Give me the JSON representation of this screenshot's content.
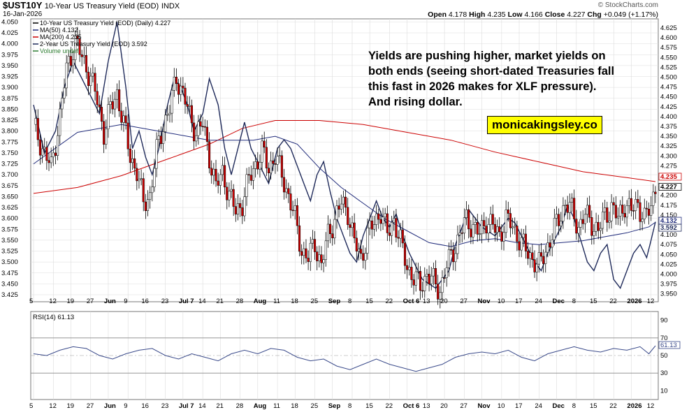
{
  "header": {
    "symbol": "$UST10Y",
    "name": "10-Year US Treasury Yield (EOD)",
    "exchange": "INDX",
    "date": "16-Jan-2026",
    "copyright": "© StockCharts.com",
    "open_label": "Open",
    "open": "4.178",
    "high_label": "High",
    "high": "4.235",
    "low_label": "Low",
    "low": "4.166",
    "close_label": "Close",
    "close": "4.227",
    "chg_label": "Chg",
    "chg": "+0.049 (+1.17%)"
  },
  "legend": [
    {
      "text": "10-Year US Treasury Yield (EOD) (Daily) 4.227",
      "color": "#000000"
    },
    {
      "text": "MA(50) 4.132",
      "color": "#1f2a7a"
    },
    {
      "text": "MA(200) 4.235",
      "color": "#cc0000"
    },
    {
      "text": "2-Year US Treasury Yield (EOD) 3.592",
      "color": "#1f2a5a"
    },
    {
      "text": "Volume undef",
      "color": "#2e7d32"
    }
  ],
  "annotation": {
    "text_lines": [
      "Yields are pushing higher, market yields on",
      "both ends (seeing short-dated Treasuries fall",
      "this fast in 2026 makes for XLF pressure).",
      "And rising dollar."
    ],
    "badge": "monicakingsley.co"
  },
  "colors": {
    "up": "#000000",
    "down": "#d00000",
    "ma50": "#1f2a7a",
    "ma200": "#cc0000",
    "ust2y": "#1f2a5a",
    "grid": "#dcdcdc",
    "rsi": "#3a4a8a"
  },
  "chart_data": [
    {
      "type": "candlestick",
      "title": "10-Year US Treasury Yield (EOD) (Daily)",
      "x_labels": [
        "5",
        "12",
        "19",
        "27",
        "Jun",
        "9",
        "16",
        "23",
        "Jul 7",
        "14",
        "21",
        "28",
        "Aug",
        "11",
        "18",
        "25",
        "Sep",
        "8",
        "15",
        "22",
        "Oct 6",
        "13",
        "20",
        "27",
        "Nov",
        "10",
        "17",
        "24",
        "Dec",
        "8",
        "15",
        "22",
        "2026",
        "12"
      ],
      "y_right_ticks": [
        "3.950",
        "3.975",
        "4.000",
        "4.025",
        "4.050",
        "4.075",
        "4.100",
        "4.125",
        "4.150",
        "4.175",
        "4.200",
        "4.225",
        "4.250",
        "4.275",
        "4.300",
        "4.325",
        "4.350",
        "4.375",
        "4.400",
        "4.425",
        "4.450",
        "4.475",
        "4.500",
        "4.525",
        "4.550",
        "4.575",
        "4.600",
        "4.625"
      ],
      "y_left_ticks": [
        "3.425",
        "3.450",
        "3.475",
        "3.500",
        "3.525",
        "3.550",
        "3.575",
        "3.600",
        "3.625",
        "3.650",
        "3.675",
        "3.700",
        "3.725",
        "3.750",
        "3.775",
        "3.800",
        "3.825",
        "3.850",
        "3.875",
        "3.900",
        "3.925",
        "3.950",
        "3.975",
        "4.000",
        "4.025",
        "4.050"
      ],
      "y_right_range": [
        3.93,
        4.648
      ],
      "y_left_range": [
        3.409,
        4.057
      ],
      "right_tags": [
        "4.235",
        "4.227",
        "4.132",
        "3.592"
      ],
      "ust10y_close_path": [
        [
          0,
          4.38
        ],
        [
          4,
          4.32
        ],
        [
          8,
          4.27
        ],
        [
          12,
          4.4
        ],
        [
          15,
          4.52
        ],
        [
          19,
          4.59
        ],
        [
          22,
          4.55
        ],
        [
          26,
          4.5
        ],
        [
          29,
          4.44
        ],
        [
          32,
          4.36
        ],
        [
          35,
          4.42
        ],
        [
          38,
          4.46
        ],
        [
          41,
          4.38
        ],
        [
          44,
          4.3
        ],
        [
          47,
          4.26
        ],
        [
          50,
          4.18
        ],
        [
          53,
          4.2
        ],
        [
          56,
          4.31
        ],
        [
          59,
          4.38
        ],
        [
          62,
          4.42
        ],
        [
          65,
          4.5
        ],
        [
          68,
          4.46
        ],
        [
          71,
          4.4
        ],
        [
          74,
          4.36
        ],
        [
          77,
          4.38
        ],
        [
          80,
          4.3
        ],
        [
          83,
          4.22
        ],
        [
          86,
          4.26
        ],
        [
          89,
          4.2
        ],
        [
          92,
          4.16
        ],
        [
          95,
          4.18
        ],
        [
          98,
          4.24
        ],
        [
          101,
          4.28
        ],
        [
          104,
          4.31
        ],
        [
          107,
          4.27
        ],
        [
          110,
          4.3
        ],
        [
          113,
          4.25
        ],
        [
          116,
          4.2
        ],
        [
          119,
          4.14
        ],
        [
          122,
          4.06
        ],
        [
          125,
          4.04
        ],
        [
          128,
          4.08
        ],
        [
          131,
          4.02
        ],
        [
          134,
          4.1
        ],
        [
          137,
          4.14
        ],
        [
          140,
          4.18
        ],
        [
          143,
          4.16
        ],
        [
          146,
          4.08
        ],
        [
          149,
          4.04
        ],
        [
          152,
          4.1
        ],
        [
          155,
          4.13
        ],
        [
          158,
          4.16
        ],
        [
          161,
          4.1
        ],
        [
          164,
          4.14
        ],
        [
          167,
          4.08
        ],
        [
          170,
          4.02
        ],
        [
          173,
          3.99
        ],
        [
          176,
          3.97
        ],
        [
          179,
          4.0
        ],
        [
          182,
          3.98
        ],
        [
          185,
          3.96
        ],
        [
          188,
          4.02
        ],
        [
          191,
          4.06
        ],
        [
          194,
          4.1
        ],
        [
          197,
          4.14
        ],
        [
          200,
          4.12
        ],
        [
          203,
          4.1
        ],
        [
          206,
          4.14
        ],
        [
          209,
          4.12
        ],
        [
          212,
          4.1
        ],
        [
          215,
          4.14
        ],
        [
          218,
          4.12
        ],
        [
          221,
          4.09
        ],
        [
          224,
          4.06
        ],
        [
          227,
          4.04
        ],
        [
          230,
          4.02
        ],
        [
          233,
          4.06
        ],
        [
          236,
          4.1
        ],
        [
          239,
          4.14
        ],
        [
          242,
          4.18
        ],
        [
          245,
          4.16
        ],
        [
          248,
          4.12
        ],
        [
          251,
          4.15
        ],
        [
          254,
          4.13
        ],
        [
          257,
          4.11
        ],
        [
          260,
          4.15
        ],
        [
          263,
          4.17
        ],
        [
          266,
          4.14
        ],
        [
          269,
          4.18
        ],
        [
          272,
          4.16
        ],
        [
          275,
          4.18
        ],
        [
          278,
          4.14
        ],
        [
          281,
          4.17
        ],
        [
          283,
          4.227
        ]
      ],
      "ma50_path": [
        [
          0,
          4.28
        ],
        [
          20,
          4.36
        ],
        [
          40,
          4.38
        ],
        [
          60,
          4.36
        ],
        [
          80,
          4.34
        ],
        [
          100,
          4.34
        ],
        [
          110,
          4.35
        ],
        [
          120,
          4.33
        ],
        [
          130,
          4.27
        ],
        [
          140,
          4.22
        ],
        [
          150,
          4.18
        ],
        [
          160,
          4.14
        ],
        [
          170,
          4.11
        ],
        [
          180,
          4.08
        ],
        [
          190,
          4.07
        ],
        [
          200,
          4.085
        ],
        [
          210,
          4.09
        ],
        [
          220,
          4.08
        ],
        [
          230,
          4.075
        ],
        [
          240,
          4.08
        ],
        [
          250,
          4.085
        ],
        [
          260,
          4.095
        ],
        [
          270,
          4.105
        ],
        [
          280,
          4.12
        ],
        [
          283,
          4.132
        ]
      ],
      "ma200_path": [
        [
          0,
          4.205
        ],
        [
          20,
          4.22
        ],
        [
          40,
          4.25
        ],
        [
          60,
          4.29
        ],
        [
          80,
          4.33
        ],
        [
          95,
          4.37
        ],
        [
          110,
          4.39
        ],
        [
          130,
          4.39
        ],
        [
          150,
          4.38
        ],
        [
          170,
          4.36
        ],
        [
          190,
          4.34
        ],
        [
          210,
          4.31
        ],
        [
          230,
          4.285
        ],
        [
          250,
          4.26
        ],
        [
          270,
          4.245
        ],
        [
          283,
          4.235
        ]
      ],
      "ust2y_path": [
        [
          0,
          3.86
        ],
        [
          5,
          3.75
        ],
        [
          10,
          3.8
        ],
        [
          14,
          3.9
        ],
        [
          18,
          3.96
        ],
        [
          22,
          3.92
        ],
        [
          26,
          3.88
        ],
        [
          30,
          3.84
        ],
        [
          34,
          3.96
        ],
        [
          38,
          4.05
        ],
        [
          42,
          3.9
        ],
        [
          45,
          3.76
        ],
        [
          48,
          3.8
        ],
        [
          51,
          3.74
        ],
        [
          54,
          3.7
        ],
        [
          57,
          3.76
        ],
        [
          61,
          3.86
        ],
        [
          64,
          3.92
        ],
        [
          67,
          3.9
        ],
        [
          70,
          3.86
        ],
        [
          73,
          3.8
        ],
        [
          77,
          3.84
        ],
        [
          80,
          3.92
        ],
        [
          84,
          3.86
        ],
        [
          87,
          3.76
        ],
        [
          90,
          3.7
        ],
        [
          93,
          3.76
        ],
        [
          96,
          3.82
        ],
        [
          99,
          3.76
        ],
        [
          103,
          3.72
        ],
        [
          107,
          3.68
        ],
        [
          111,
          3.76
        ],
        [
          114,
          3.78
        ],
        [
          117,
          3.76
        ],
        [
          120,
          3.72
        ],
        [
          123,
          3.68
        ],
        [
          126,
          3.64
        ],
        [
          129,
          3.7
        ],
        [
          132,
          3.73
        ],
        [
          135,
          3.66
        ],
        [
          138,
          3.6
        ],
        [
          141,
          3.56
        ],
        [
          144,
          3.52
        ],
        [
          147,
          3.5
        ],
        [
          150,
          3.56
        ],
        [
          153,
          3.6
        ],
        [
          156,
          3.64
        ],
        [
          159,
          3.6
        ],
        [
          162,
          3.58
        ],
        [
          165,
          3.61
        ],
        [
          168,
          3.56
        ],
        [
          171,
          3.52
        ],
        [
          174,
          3.49
        ],
        [
          177,
          3.46
        ],
        [
          180,
          3.45
        ],
        [
          183,
          3.44
        ],
        [
          186,
          3.46
        ],
        [
          189,
          3.48
        ],
        [
          192,
          3.54
        ],
        [
          195,
          3.58
        ],
        [
          198,
          3.62
        ],
        [
          201,
          3.6
        ],
        [
          204,
          3.58
        ],
        [
          207,
          3.57
        ],
        [
          210,
          3.56
        ],
        [
          213,
          3.58
        ],
        [
          216,
          3.6
        ],
        [
          219,
          3.59
        ],
        [
          222,
          3.56
        ],
        [
          225,
          3.53
        ],
        [
          228,
          3.5
        ],
        [
          231,
          3.48
        ],
        [
          234,
          3.52
        ],
        [
          237,
          3.55
        ],
        [
          240,
          3.58
        ],
        [
          243,
          3.63
        ],
        [
          246,
          3.6
        ],
        [
          249,
          3.55
        ],
        [
          252,
          3.5
        ],
        [
          255,
          3.48
        ],
        [
          258,
          3.52
        ],
        [
          261,
          3.54
        ],
        [
          264,
          3.46
        ],
        [
          267,
          3.44
        ],
        [
          270,
          3.48
        ],
        [
          273,
          3.52
        ],
        [
          276,
          3.54
        ],
        [
          279,
          3.51
        ],
        [
          281,
          3.55
        ],
        [
          283,
          3.592
        ]
      ],
      "volume": "undef"
    },
    {
      "type": "line",
      "title": "RSI(14) 61.13",
      "y_ticks": [
        "10",
        "30",
        "50",
        "70",
        "90"
      ],
      "ylim": [
        0,
        100
      ],
      "latest": "61.13",
      "values": [
        [
          0,
          52
        ],
        [
          6,
          50
        ],
        [
          12,
          56
        ],
        [
          18,
          60
        ],
        [
          24,
          58
        ],
        [
          30,
          50
        ],
        [
          36,
          46
        ],
        [
          42,
          52
        ],
        [
          48,
          56
        ],
        [
          54,
          58
        ],
        [
          60,
          50
        ],
        [
          66,
          46
        ],
        [
          72,
          52
        ],
        [
          78,
          48
        ],
        [
          84,
          44
        ],
        [
          90,
          52
        ],
        [
          96,
          56
        ],
        [
          102,
          52
        ],
        [
          108,
          58
        ],
        [
          114,
          56
        ],
        [
          120,
          48
        ],
        [
          126,
          44
        ],
        [
          132,
          46
        ],
        [
          138,
          38
        ],
        [
          144,
          34
        ],
        [
          150,
          40
        ],
        [
          156,
          46
        ],
        [
          162,
          40
        ],
        [
          168,
          36
        ],
        [
          174,
          32
        ],
        [
          180,
          36
        ],
        [
          186,
          40
        ],
        [
          192,
          48
        ],
        [
          198,
          52
        ],
        [
          204,
          54
        ],
        [
          210,
          52
        ],
        [
          216,
          56
        ],
        [
          222,
          48
        ],
        [
          228,
          44
        ],
        [
          234,
          52
        ],
        [
          240,
          56
        ],
        [
          246,
          60
        ],
        [
          252,
          56
        ],
        [
          258,
          54
        ],
        [
          264,
          58
        ],
        [
          270,
          56
        ],
        [
          276,
          60
        ],
        [
          280,
          52
        ],
        [
          283,
          61.13
        ]
      ]
    }
  ]
}
